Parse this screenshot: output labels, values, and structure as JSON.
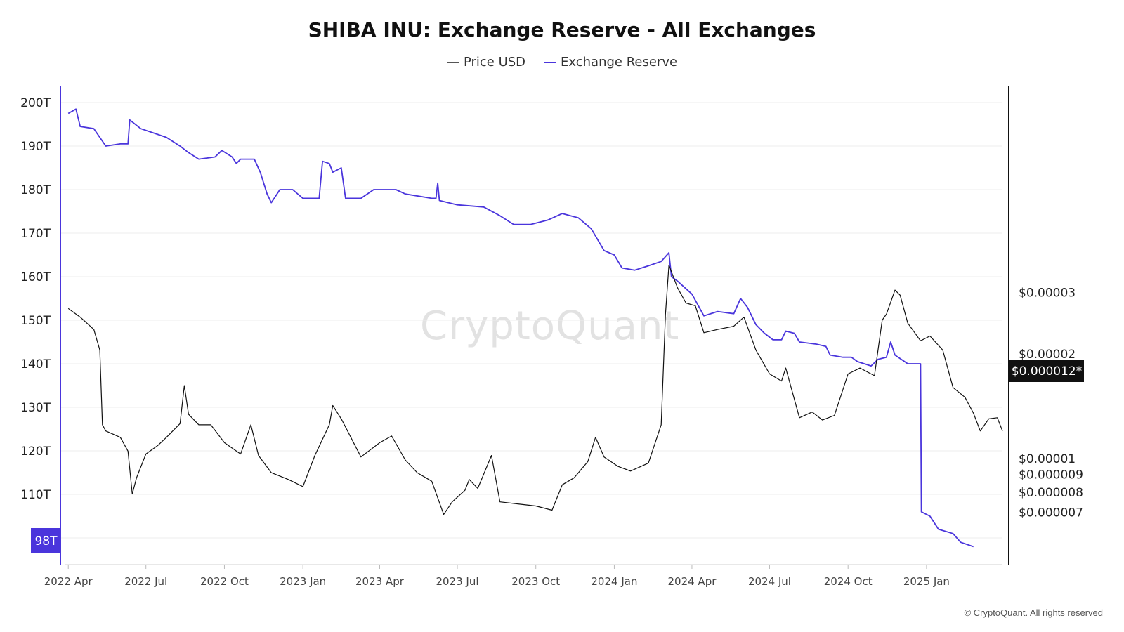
{
  "colors": {
    "price_line": "#111111",
    "reserve_line": "#4a35dc",
    "accent": "#4a35dc",
    "gridline": "#ececec",
    "price_badge_bg": "#111111"
  },
  "watermark": "CryptoQuant",
  "copyright": "© CryptoQuant. All rights reserved",
  "chart_data": {
    "type": "line",
    "title": "SHIBA INU: Exchange Reserve - All Exchanges",
    "legend": {
      "placement": "top-center",
      "items": [
        "Price USD",
        "Exchange Reserve"
      ]
    },
    "grid": true,
    "x_ticks": [
      "2022 Apr",
      "2022 Jul",
      "2022 Oct",
      "2023 Jan",
      "2023 Apr",
      "2023 Jul",
      "2023 Oct",
      "2024 Jan",
      "2024 Apr",
      "2024 Jul",
      "2024 Oct",
      "2025 Jan"
    ],
    "x_range": [
      "2022-03-31",
      "2025-03-31"
    ],
    "left_axis": {
      "series": "Exchange Reserve",
      "ticks": [
        "200T",
        "190T",
        "180T",
        "170T",
        "160T",
        "150T",
        "140T",
        "130T",
        "120T",
        "110T"
      ],
      "range": [
        96,
        202
      ],
      "current_label": "98T"
    },
    "right_axis": {
      "series": "Price USD",
      "scale": "log",
      "ticks": [
        "$0.00003",
        "$0.00002",
        "$0.00001",
        "$0.000009",
        "$0.000008",
        "$0.000007"
      ],
      "current_label": "$0.000012*"
    },
    "series": [
      {
        "name": "Exchange Reserve",
        "axis": "left",
        "unit": "T",
        "points": [
          [
            "2022-04-01",
            197.5
          ],
          [
            "2022-04-10",
            198.5
          ],
          [
            "2022-04-15",
            194.5
          ],
          [
            "2022-05-01",
            194
          ],
          [
            "2022-05-15",
            190
          ],
          [
            "2022-06-01",
            190.5
          ],
          [
            "2022-06-10",
            190.5
          ],
          [
            "2022-06-12",
            196
          ],
          [
            "2022-06-25",
            194
          ],
          [
            "2022-07-10",
            193
          ],
          [
            "2022-07-25",
            192
          ],
          [
            "2022-08-10",
            190
          ],
          [
            "2022-08-20",
            188.5
          ],
          [
            "2022-09-01",
            187
          ],
          [
            "2022-09-20",
            187.5
          ],
          [
            "2022-09-28",
            189
          ],
          [
            "2022-10-10",
            187.5
          ],
          [
            "2022-10-15",
            186
          ],
          [
            "2022-10-20",
            187
          ],
          [
            "2022-11-05",
            187
          ],
          [
            "2022-11-12",
            184
          ],
          [
            "2022-11-20",
            179
          ],
          [
            "2022-11-25",
            177
          ],
          [
            "2022-12-05",
            180
          ],
          [
            "2022-12-20",
            180
          ],
          [
            "2023-01-01",
            178
          ],
          [
            "2023-01-20",
            178
          ],
          [
            "2023-01-24",
            186.5
          ],
          [
            "2023-02-01",
            186
          ],
          [
            "2023-02-05",
            184
          ],
          [
            "2023-02-15",
            185
          ],
          [
            "2023-02-20",
            178
          ],
          [
            "2023-03-10",
            178
          ],
          [
            "2023-03-25",
            180
          ],
          [
            "2023-04-20",
            180
          ],
          [
            "2023-05-01",
            179
          ],
          [
            "2023-06-01",
            178
          ],
          [
            "2023-06-06",
            178
          ],
          [
            "2023-06-08",
            181.5
          ],
          [
            "2023-06-10",
            177.5
          ],
          [
            "2023-07-01",
            176.5
          ],
          [
            "2023-08-01",
            176
          ],
          [
            "2023-08-20",
            174
          ],
          [
            "2023-09-05",
            172
          ],
          [
            "2023-09-25",
            172
          ],
          [
            "2023-10-15",
            173
          ],
          [
            "2023-11-01",
            174.5
          ],
          [
            "2023-11-20",
            173.5
          ],
          [
            "2023-12-05",
            171
          ],
          [
            "2023-12-20",
            166
          ],
          [
            "2024-01-01",
            165
          ],
          [
            "2024-01-10",
            162
          ],
          [
            "2024-01-25",
            161.5
          ],
          [
            "2024-02-10",
            162.5
          ],
          [
            "2024-02-25",
            163.5
          ],
          [
            "2024-03-05",
            165.5
          ],
          [
            "2024-03-08",
            160
          ],
          [
            "2024-03-15",
            159
          ],
          [
            "2024-04-01",
            156
          ],
          [
            "2024-04-15",
            151
          ],
          [
            "2024-05-01",
            152
          ],
          [
            "2024-05-20",
            151.5
          ],
          [
            "2024-05-28",
            155
          ],
          [
            "2024-06-05",
            153
          ],
          [
            "2024-06-15",
            149
          ],
          [
            "2024-06-25",
            147
          ],
          [
            "2024-07-05",
            145.5
          ],
          [
            "2024-07-15",
            145.5
          ],
          [
            "2024-07-20",
            147.5
          ],
          [
            "2024-07-30",
            147
          ],
          [
            "2024-08-05",
            145
          ],
          [
            "2024-08-25",
            144.5
          ],
          [
            "2024-09-05",
            144
          ],
          [
            "2024-09-10",
            142
          ],
          [
            "2024-09-25",
            141.5
          ],
          [
            "2024-10-05",
            141.5
          ],
          [
            "2024-10-12",
            140.5
          ],
          [
            "2024-10-28",
            139.5
          ],
          [
            "2024-11-05",
            141
          ],
          [
            "2024-11-15",
            141.5
          ],
          [
            "2024-11-20",
            145
          ],
          [
            "2024-11-25",
            142
          ],
          [
            "2024-12-10",
            140
          ],
          [
            "2024-12-25",
            140
          ],
          [
            "2024-12-26",
            106
          ],
          [
            "2025-01-05",
            105
          ],
          [
            "2025-01-15",
            102
          ],
          [
            "2025-02-01",
            101
          ],
          [
            "2025-02-10",
            99
          ],
          [
            "2025-02-25",
            98
          ]
        ]
      },
      {
        "name": "Price USD",
        "axis": "right",
        "unit": "USD",
        "points": [
          [
            "2022-04-01",
            2.7e-05
          ],
          [
            "2022-04-15",
            2.55e-05
          ],
          [
            "2022-05-01",
            2.35e-05
          ],
          [
            "2022-05-08",
            2.05e-05
          ],
          [
            "2022-05-11",
            1.25e-05
          ],
          [
            "2022-05-15",
            1.2e-05
          ],
          [
            "2022-06-01",
            1.15e-05
          ],
          [
            "2022-06-10",
            1.05e-05
          ],
          [
            "2022-06-15",
            7.9e-06
          ],
          [
            "2022-06-20",
            8.8e-06
          ],
          [
            "2022-07-01",
            1.03e-05
          ],
          [
            "2022-07-15",
            1.09e-05
          ],
          [
            "2022-07-25",
            1.15e-05
          ],
          [
            "2022-08-10",
            1.26e-05
          ],
          [
            "2022-08-15",
            1.62e-05
          ],
          [
            "2022-08-20",
            1.34e-05
          ],
          [
            "2022-09-01",
            1.25e-05
          ],
          [
            "2022-09-15",
            1.25e-05
          ],
          [
            "2022-10-01",
            1.11e-05
          ],
          [
            "2022-10-20",
            1.03e-05
          ],
          [
            "2022-11-01",
            1.25e-05
          ],
          [
            "2022-11-10",
            1.02e-05
          ],
          [
            "2022-11-25",
            9.1e-06
          ],
          [
            "2022-12-15",
            8.7e-06
          ],
          [
            "2023-01-01",
            8.3e-06
          ],
          [
            "2023-01-15",
            1.02e-05
          ],
          [
            "2023-02-01",
            1.25e-05
          ],
          [
            "2023-02-05",
            1.42e-05
          ],
          [
            "2023-02-15",
            1.3e-05
          ],
          [
            "2023-03-10",
            1.01e-05
          ],
          [
            "2023-04-01",
            1.11e-05
          ],
          [
            "2023-04-15",
            1.16e-05
          ],
          [
            "2023-05-01",
            9.9e-06
          ],
          [
            "2023-05-15",
            9.1e-06
          ],
          [
            "2023-06-01",
            8.6e-06
          ],
          [
            "2023-06-15",
            6.9e-06
          ],
          [
            "2023-06-25",
            7.5e-06
          ],
          [
            "2023-07-10",
            8.1e-06
          ],
          [
            "2023-07-15",
            8.7e-06
          ],
          [
            "2023-07-25",
            8.2e-06
          ],
          [
            "2023-08-10",
            1.02e-05
          ],
          [
            "2023-08-20",
            7.5e-06
          ],
          [
            "2023-09-10",
            7.4e-06
          ],
          [
            "2023-10-01",
            7.3e-06
          ],
          [
            "2023-10-20",
            7.1e-06
          ],
          [
            "2023-11-01",
            8.4e-06
          ],
          [
            "2023-11-15",
            8.8e-06
          ],
          [
            "2023-12-01",
            9.8e-06
          ],
          [
            "2023-12-10",
            1.15e-05
          ],
          [
            "2023-12-20",
            1.01e-05
          ],
          [
            "2024-01-05",
            9.5e-06
          ],
          [
            "2024-01-20",
            9.2e-06
          ],
          [
            "2024-02-10",
            9.7e-06
          ],
          [
            "2024-02-25",
            1.25e-05
          ],
          [
            "2024-03-01",
            2.6e-05
          ],
          [
            "2024-03-05",
            3.6e-05
          ],
          [
            "2024-03-15",
            3.1e-05
          ],
          [
            "2024-03-25",
            2.8e-05
          ],
          [
            "2024-04-05",
            2.75e-05
          ],
          [
            "2024-04-15",
            2.3e-05
          ],
          [
            "2024-05-01",
            2.35e-05
          ],
          [
            "2024-05-20",
            2.4e-05
          ],
          [
            "2024-06-01",
            2.55e-05
          ],
          [
            "2024-06-15",
            2.05e-05
          ],
          [
            "2024-07-01",
            1.75e-05
          ],
          [
            "2024-07-15",
            1.67e-05
          ],
          [
            "2024-07-20",
            1.82e-05
          ],
          [
            "2024-08-05",
            1.31e-05
          ],
          [
            "2024-08-20",
            1.36e-05
          ],
          [
            "2024-09-01",
            1.29e-05
          ],
          [
            "2024-09-15",
            1.33e-05
          ],
          [
            "2024-10-01",
            1.75e-05
          ],
          [
            "2024-10-15",
            1.82e-05
          ],
          [
            "2024-11-01",
            1.73e-05
          ],
          [
            "2024-11-10",
            2.5e-05
          ],
          [
            "2024-11-15",
            2.6e-05
          ],
          [
            "2024-11-25",
            3.05e-05
          ],
          [
            "2024-12-01",
            2.95e-05
          ],
          [
            "2024-12-10",
            2.45e-05
          ],
          [
            "2024-12-25",
            2.18e-05
          ],
          [
            "2025-01-05",
            2.25e-05
          ],
          [
            "2025-01-20",
            2.05e-05
          ],
          [
            "2025-02-01",
            1.6e-05
          ],
          [
            "2025-02-15",
            1.5e-05
          ],
          [
            "2025-02-25",
            1.35e-05
          ],
          [
            "2025-03-05",
            1.2e-05
          ],
          [
            "2025-03-15",
            1.3e-05
          ],
          [
            "2025-03-25",
            1.31e-05
          ],
          [
            "2025-03-31",
            1.2e-05
          ]
        ]
      }
    ]
  }
}
